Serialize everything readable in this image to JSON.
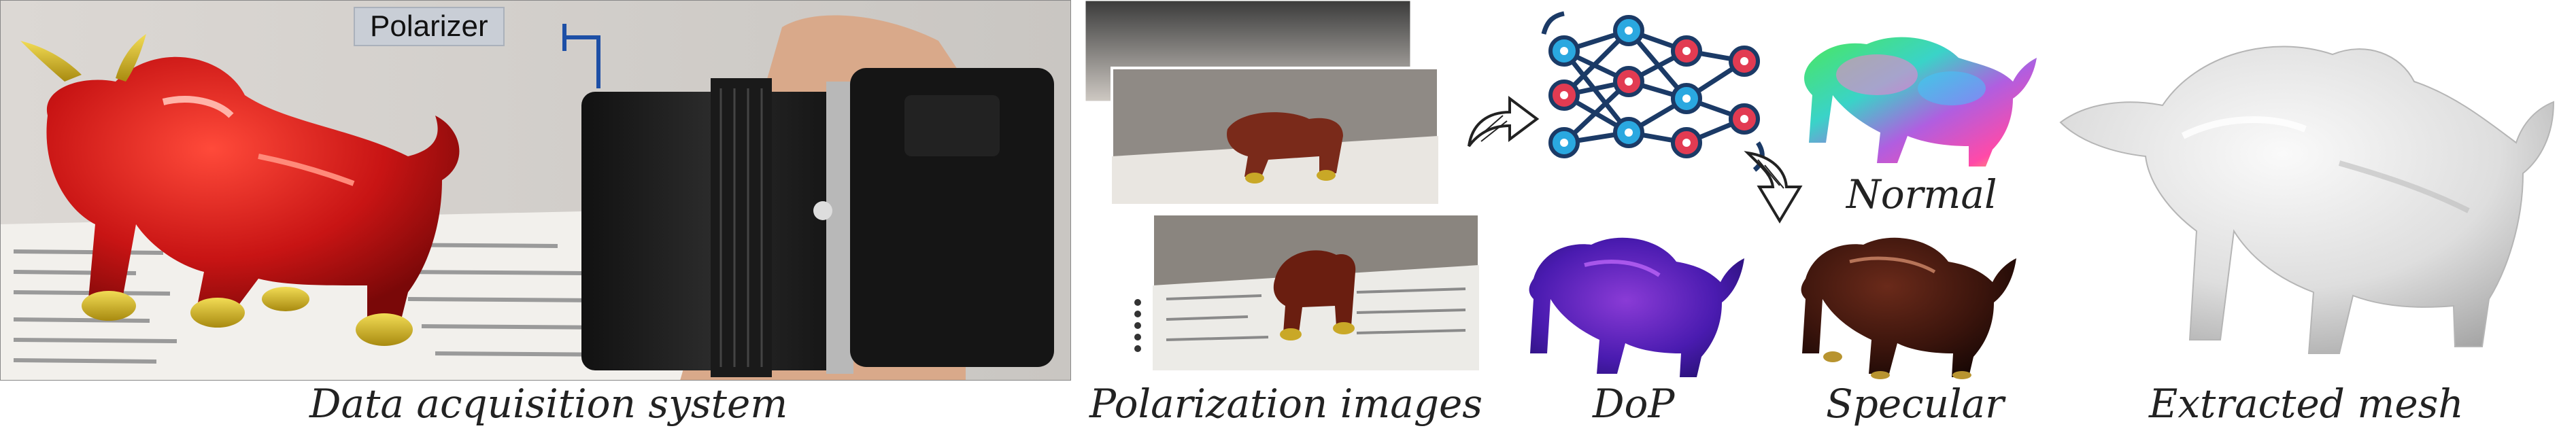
{
  "figure": {
    "captions": {
      "acquisition": "Data acquisition system",
      "polarization": "Polarization images",
      "dop": "DoP",
      "specular": "Specular",
      "extracted": "Extracted mesh"
    },
    "labels": {
      "polarizer": "Polarizer",
      "normal": "Normal"
    },
    "colors": {
      "bull_red": "#c81414",
      "bull_gold": "#d4b21a",
      "net_blue": "#1b3a66",
      "net_red": "#e23b52",
      "net_cyan": "#2aa8e0"
    }
  }
}
